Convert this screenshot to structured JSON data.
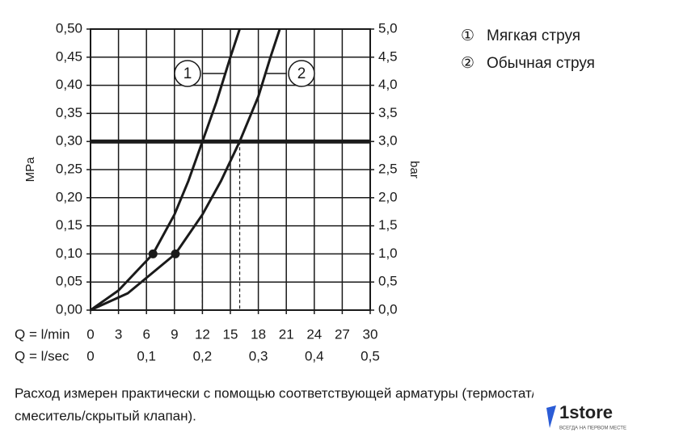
{
  "chart_data": {
    "type": "line",
    "xlabel": "Q = l/min",
    "x2label": "Q = l/sec",
    "ylabel": "MPa",
    "y2label": "bar",
    "xlim": [
      0,
      30
    ],
    "xticks": [
      0,
      3,
      6,
      9,
      12,
      15,
      18,
      21,
      24,
      27,
      30
    ],
    "x2lim": [
      0,
      0.5
    ],
    "x2ticks": [
      0,
      {
        "value": 0.1,
        "label": "0,1"
      },
      {
        "value": 0.2,
        "label": "0,2"
      },
      {
        "value": 0.3,
        "label": "0,3"
      },
      {
        "value": 0.4,
        "label": "0,4"
      },
      {
        "value": 0.5,
        "label": "0,5"
      }
    ],
    "ylim": [
      0,
      0.5
    ],
    "yticks": [
      {
        "value": 0,
        "label": "0,00"
      },
      {
        "value": 0.05,
        "label": "0,05"
      },
      {
        "value": 0.1,
        "label": "0,10"
      },
      {
        "value": 0.15,
        "label": "0,15"
      },
      {
        "value": 0.2,
        "label": "0,20"
      },
      {
        "value": 0.25,
        "label": "0,25"
      },
      {
        "value": 0.3,
        "label": "0,30"
      },
      {
        "value": 0.35,
        "label": "0,35"
      },
      {
        "value": 0.4,
        "label": "0,40"
      },
      {
        "value": 0.45,
        "label": "0,45"
      },
      {
        "value": 0.5,
        "label": "0,50"
      }
    ],
    "y2lim": [
      0,
      5
    ],
    "y2ticks": [
      {
        "value": 0,
        "label": "0,0"
      },
      {
        "value": 0.5,
        "label": "0,5"
      },
      {
        "value": 1,
        "label": "1,0"
      },
      {
        "value": 1.5,
        "label": "1,5"
      },
      {
        "value": 2,
        "label": "2,0"
      },
      {
        "value": 2.5,
        "label": "2,5"
      },
      {
        "value": 3,
        "label": "3,0"
      },
      {
        "value": 3.5,
        "label": "3,5"
      },
      {
        "value": 4,
        "label": "4,0"
      },
      {
        "value": 4.5,
        "label": "4,5"
      },
      {
        "value": 5,
        "label": "5,0"
      }
    ],
    "grid": true,
    "reference_line": 0.3,
    "drop_lines_x": [
      12,
      16
    ],
    "series": [
      {
        "name": "Мягкая струя",
        "legend_symbol": "①",
        "annotation": "1",
        "color": "#1a1a1a",
        "x": [
          0,
          3,
          6.7,
          9,
          10.5,
          12,
          13.5,
          15,
          16
        ],
        "values": [
          0,
          0.035,
          0.1,
          0.17,
          0.23,
          0.3,
          0.37,
          0.45,
          0.5
        ]
      },
      {
        "name": "Обычная струя",
        "legend_symbol": "②",
        "annotation": "2",
        "color": "#1a1a1a",
        "x": [
          0,
          4,
          9.1,
          12,
          14,
          16,
          18,
          19.3,
          20.3
        ],
        "values": [
          0,
          0.03,
          0.1,
          0.17,
          0.23,
          0.3,
          0.38,
          0.45,
          0.5
        ]
      }
    ],
    "points": [
      {
        "x": 6.7,
        "y": 0.1
      },
      {
        "x": 9.1,
        "y": 0.1
      }
    ]
  },
  "footnote": [
    "Расход измерен практически с помощью соответствующей арматуры (термостат/",
    "смеситель/скрытый клапан)."
  ],
  "logo": {
    "name": "1store",
    "tagline": "ВСЕГДА НА ПЕРВОМ МЕСТЕ"
  }
}
